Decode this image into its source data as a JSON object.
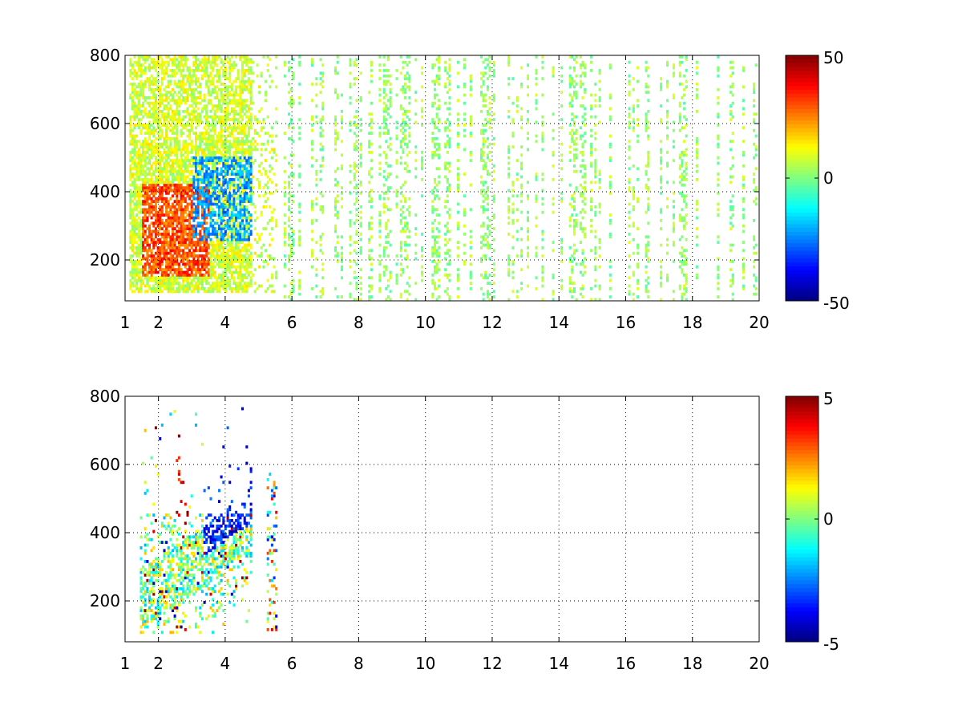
{
  "chart_data": [
    {
      "type": "heatmap",
      "title": "",
      "xlabel": "",
      "ylabel": "",
      "xlim": [
        1,
        20
      ],
      "ylim": [
        80,
        800
      ],
      "xticks": [
        1,
        2,
        4,
        6,
        8,
        10,
        12,
        14,
        16,
        18,
        20
      ],
      "yticks": [
        200,
        400,
        600,
        800
      ],
      "grid": true,
      "colormap": "jet",
      "colorbar": {
        "min": -50,
        "max": 50,
        "ticks": [
          50,
          0,
          -50
        ]
      },
      "structure": {
        "dense_region": {
          "x": [
            1.1,
            5.5
          ],
          "y": [
            100,
            800
          ]
        },
        "positive_core": {
          "x": [
            1.5,
            3.5
          ],
          "y": [
            150,
            420
          ],
          "value": 35
        },
        "negative_core": {
          "x": [
            3.0,
            4.8
          ],
          "y": [
            250,
            500
          ],
          "value": -25
        },
        "sparse_region": {
          "x": [
            5.5,
            20
          ],
          "y": [
            80,
            800
          ],
          "value_range": [
            -5,
            10
          ]
        }
      }
    },
    {
      "type": "heatmap",
      "title": "",
      "xlabel": "",
      "ylabel": "",
      "xlim": [
        1,
        20
      ],
      "ylim": [
        80,
        800
      ],
      "xticks": [
        1,
        2,
        4,
        6,
        8,
        10,
        12,
        14,
        16,
        18,
        20
      ],
      "yticks": [
        200,
        400,
        600,
        800
      ],
      "grid": true,
      "colormap": "jet",
      "colorbar": {
        "min": -5,
        "max": 5,
        "ticks": [
          5,
          0,
          -5
        ]
      },
      "structure": {
        "dense_region": {
          "x": [
            1.4,
            4.8
          ],
          "y": [
            100,
            760
          ]
        },
        "band": {
          "x_start": 1.7,
          "y_start": 220,
          "x_end": 4.7,
          "y_end": 420
        },
        "outliers": {
          "x": [
            5.2,
            5.5
          ],
          "y": [
            100,
            570
          ]
        }
      }
    }
  ]
}
